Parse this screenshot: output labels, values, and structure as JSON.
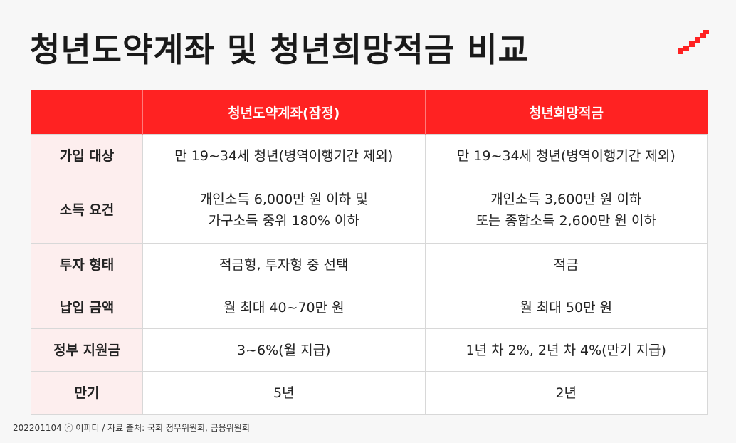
{
  "title": "청년도약계좌 및 청년희망적금 비교",
  "header": {
    "col1": "",
    "col2": "청년도약계좌(잠정)",
    "col3": "청년희망적금"
  },
  "rows": [
    {
      "label": "가입 대상",
      "a": "만 19~34세 청년(병역이행기간 제외)",
      "b": "만 19~34세 청년(병역이행기간 제외)"
    },
    {
      "label": "소득 요건",
      "a1": "개인소득 6,000만 원 이하 및",
      "a2": "가구소득 중위 180% 이하",
      "b1": "개인소득 3,600만 원 이하",
      "b2": "또는 종합소득 2,600만 원 이하"
    },
    {
      "label": "투자 형태",
      "a": "적금형, 투자형 중 선택",
      "b": "적금"
    },
    {
      "label": "납입 금액",
      "a": "월 최대 40~70만 원",
      "b": "월 최대 50만 원"
    },
    {
      "label": "정부 지원금",
      "a": "3~6%(월 지급)",
      "b": "1년 차 2%, 2년 차 4%(만기 지급)"
    },
    {
      "label": "만기",
      "a": "5년",
      "b": "2년"
    }
  ],
  "footer": "202201104 ⓒ 어피티 / 자료 출처: 국회 정무위원회, 금융위원회",
  "colors": {
    "accent": "#ff2222",
    "label_bg": "#fdeeee"
  }
}
